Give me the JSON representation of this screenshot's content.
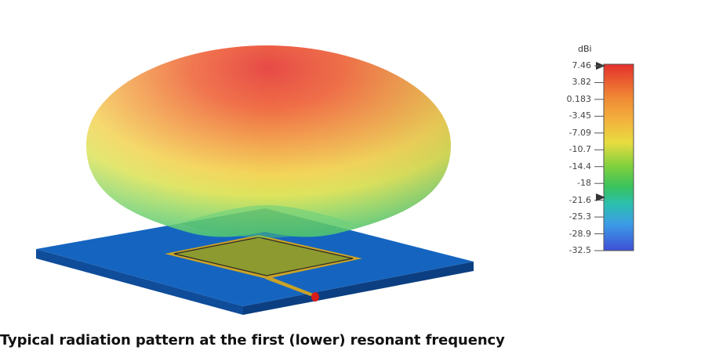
{
  "figure": {
    "caption": "Typical radiation pattern at the first (lower) resonant frequency"
  },
  "colorbar": {
    "unit": "dBi",
    "ticks": [
      "7.46",
      "3.82",
      "0.183",
      "-3.45",
      "-7.09",
      "-10.7",
      "-14.4",
      "-18",
      "-21.6",
      "-25.3",
      "-28.9",
      "-32.5"
    ],
    "colors": [
      "#e4302c",
      "#ee5a2c",
      "#f18a35",
      "#f3b13d",
      "#f0d640",
      "#c9dc3c",
      "#7ed03e",
      "#38c25e",
      "#2cbfa3",
      "#34b4dd",
      "#3c86e6",
      "#3e52d8"
    ]
  },
  "scene": {
    "colors": {
      "substrate_top": "#1565c0",
      "substrate_side": "#0f4c9a",
      "patch_fill": "#8d9a2f",
      "patch_border": "#c9a227",
      "feed_port": "#d81b1b"
    }
  }
}
